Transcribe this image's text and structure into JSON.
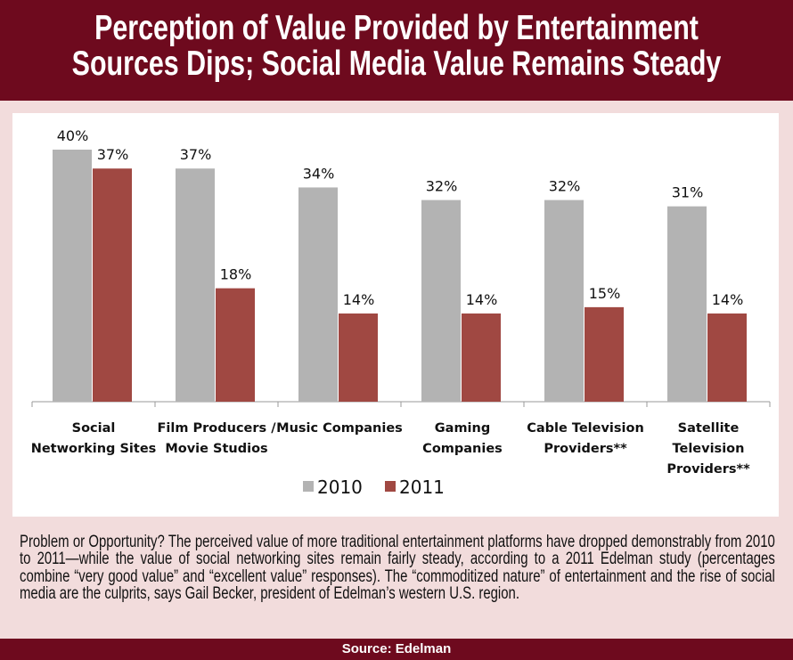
{
  "title_lines": [
    "Perception of Value Provided by Entertainment",
    "Sources Dips; Social Media Value Remains Steady"
  ],
  "chart_data": {
    "type": "bar",
    "categories": [
      [
        "Social",
        "Networking Sites"
      ],
      [
        "Film Producers /",
        "Movie Studios"
      ],
      [
        "Music Companies"
      ],
      [
        "Gaming",
        "Companies"
      ],
      [
        "Cable Television",
        "Providers**"
      ],
      [
        "Satellite",
        "Television",
        "Providers**"
      ]
    ],
    "series": [
      {
        "name": "2010",
        "color": "#b3b3b3",
        "values": [
          40,
          37,
          34,
          32,
          32,
          31
        ]
      },
      {
        "name": "2011",
        "color": "#a04842",
        "values": [
          37,
          18,
          14,
          14,
          15,
          14
        ]
      }
    ],
    "data_labels": [
      [
        "40%",
        "37%",
        "34%",
        "32%",
        "32%",
        "31%"
      ],
      [
        "37%",
        "18%",
        "14%",
        "14%",
        "15%",
        "14%"
      ]
    ],
    "ylim": [
      0,
      40
    ],
    "legend": "bottom",
    "grid": false
  },
  "caption": "Problem or Opportunity? The perceived value of more traditional entertainment platforms have dropped demonstrably from 2010 to 2011—while the value of social networking sites remain fairly steady, according to a 2011 Edelman study (percentages combine “very good value” and “excellent value” responses). The “commoditized nature” of entertainment and the rise of social media are the culprits, says Gail Becker, president of Edelman’s western U.S. region.",
  "footer": "Source: Edelman"
}
